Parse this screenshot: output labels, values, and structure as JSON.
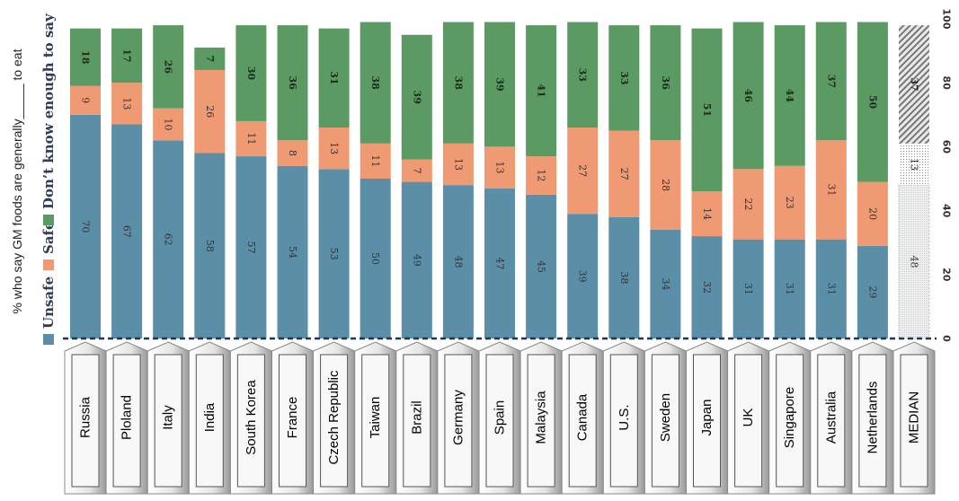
{
  "chart_data": {
    "type": "bar",
    "stacked": true,
    "orientation": "rotated-90-clockwise",
    "ylabel": "% who say GM foods are generally_____ to eat",
    "ylim": [
      0,
      100
    ],
    "yticks": [
      0,
      20,
      40,
      60,
      80,
      100
    ],
    "legend_position": "left",
    "categories": [
      "Russia",
      "Ploland",
      "Italy",
      "India",
      "South Korea",
      "France",
      "Czech Republic",
      "Taiwan",
      "Brazil",
      "Germany",
      "Spain",
      "Malaysia",
      "Canada",
      "U.S.",
      "Sweden",
      "Japan",
      "UK",
      "Singapore",
      "Australia",
      "Netherlands",
      "MEDIAN"
    ],
    "series": [
      {
        "name": "Unsafe",
        "color": "#5b8fa8",
        "values": [
          70,
          67,
          62,
          58,
          57,
          54,
          53,
          50,
          49,
          48,
          47,
          45,
          39,
          38,
          34,
          32,
          31,
          31,
          31,
          29,
          48
        ]
      },
      {
        "name": "Safe",
        "color": "#f09a73",
        "values": [
          9,
          13,
          10,
          26,
          11,
          8,
          13,
          11,
          7,
          13,
          13,
          12,
          27,
          27,
          28,
          14,
          22,
          23,
          31,
          20,
          13
        ]
      },
      {
        "name": "Don't know enough to say",
        "color": "#5b9a62",
        "values": [
          18,
          17,
          26,
          7,
          30,
          36,
          31,
          38,
          39,
          38,
          39,
          41,
          33,
          33,
          36,
          51,
          46,
          44,
          37,
          50,
          37
        ]
      }
    ],
    "legend_labels": [
      "Unsafe",
      "Safe",
      "Don’t know enough to say"
    ],
    "median_pattern": "hatched-grey"
  }
}
